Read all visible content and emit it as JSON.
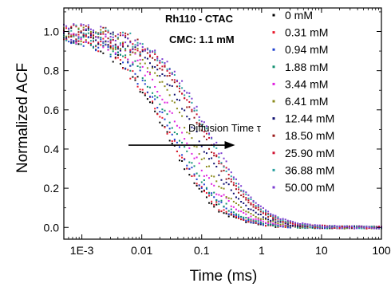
{
  "chart_data": {
    "type": "scatter",
    "xlabel": "Time (ms)",
    "ylabel": "Normalized ACF",
    "x_scale": "log",
    "xlim": [
      0.0005,
      100
    ],
    "ylim": [
      -0.06,
      1.12
    ],
    "x_ticks": [
      0.001,
      0.01,
      0.1,
      1,
      10,
      100
    ],
    "x_tick_labels": [
      "1E-3",
      "0.01",
      "0.1",
      "1",
      "10",
      "100"
    ],
    "y_ticks": [
      0.0,
      0.2,
      0.4,
      0.6,
      0.8,
      1.0
    ],
    "y_tick_labels": [
      "0.0",
      "0.2",
      "0.4",
      "0.6",
      "0.8",
      "1.0"
    ],
    "grid": false,
    "legend_position": "top-right",
    "annotations": [
      {
        "text": "Rh110 - CTAC",
        "bold": true
      },
      {
        "text": "CMC: 1.1 mM",
        "bold": true
      },
      {
        "text": "Diffusion Time τ",
        "bold": false,
        "arrow": {
          "from_x": 0.006,
          "to_x": 0.36,
          "y": 0.42
        }
      }
    ],
    "series": [
      {
        "name": "0 mM",
        "tau_ms": 0.025,
        "color": "#000000",
        "marker": "square"
      },
      {
        "name": "0.31 mM",
        "tau_ms": 0.027,
        "color": "#e8192c",
        "marker": "circle"
      },
      {
        "name": "0.94 mM",
        "tau_ms": 0.03,
        "color": "#1e3fd0",
        "marker": "triangle-up"
      },
      {
        "name": "1.88 mM",
        "tau_ms": 0.035,
        "color": "#0f8f6f",
        "marker": "triangle-down"
      },
      {
        "name": "3.44 mM",
        "tau_ms": 0.045,
        "color": "#e020e0",
        "marker": "triangle-left"
      },
      {
        "name": "6.41 mM",
        "tau_ms": 0.06,
        "color": "#8a8a1a",
        "marker": "triangle-right"
      },
      {
        "name": "12.44 mM",
        "tau_ms": 0.078,
        "color": "#101070",
        "marker": "diamond"
      },
      {
        "name": "18.50 mM",
        "tau_ms": 0.1,
        "color": "#9a1818",
        "marker": "hexagon"
      },
      {
        "name": "25.90 mM",
        "tau_ms": 0.11,
        "color": "#d01030",
        "marker": "star"
      },
      {
        "name": "36.88 mM",
        "tau_ms": 0.12,
        "color": "#2aa0a0",
        "marker": "pentagon"
      },
      {
        "name": "50.00 mM",
        "tau_ms": 0.13,
        "color": "#7a3ad0",
        "marker": "circle"
      }
    ]
  }
}
